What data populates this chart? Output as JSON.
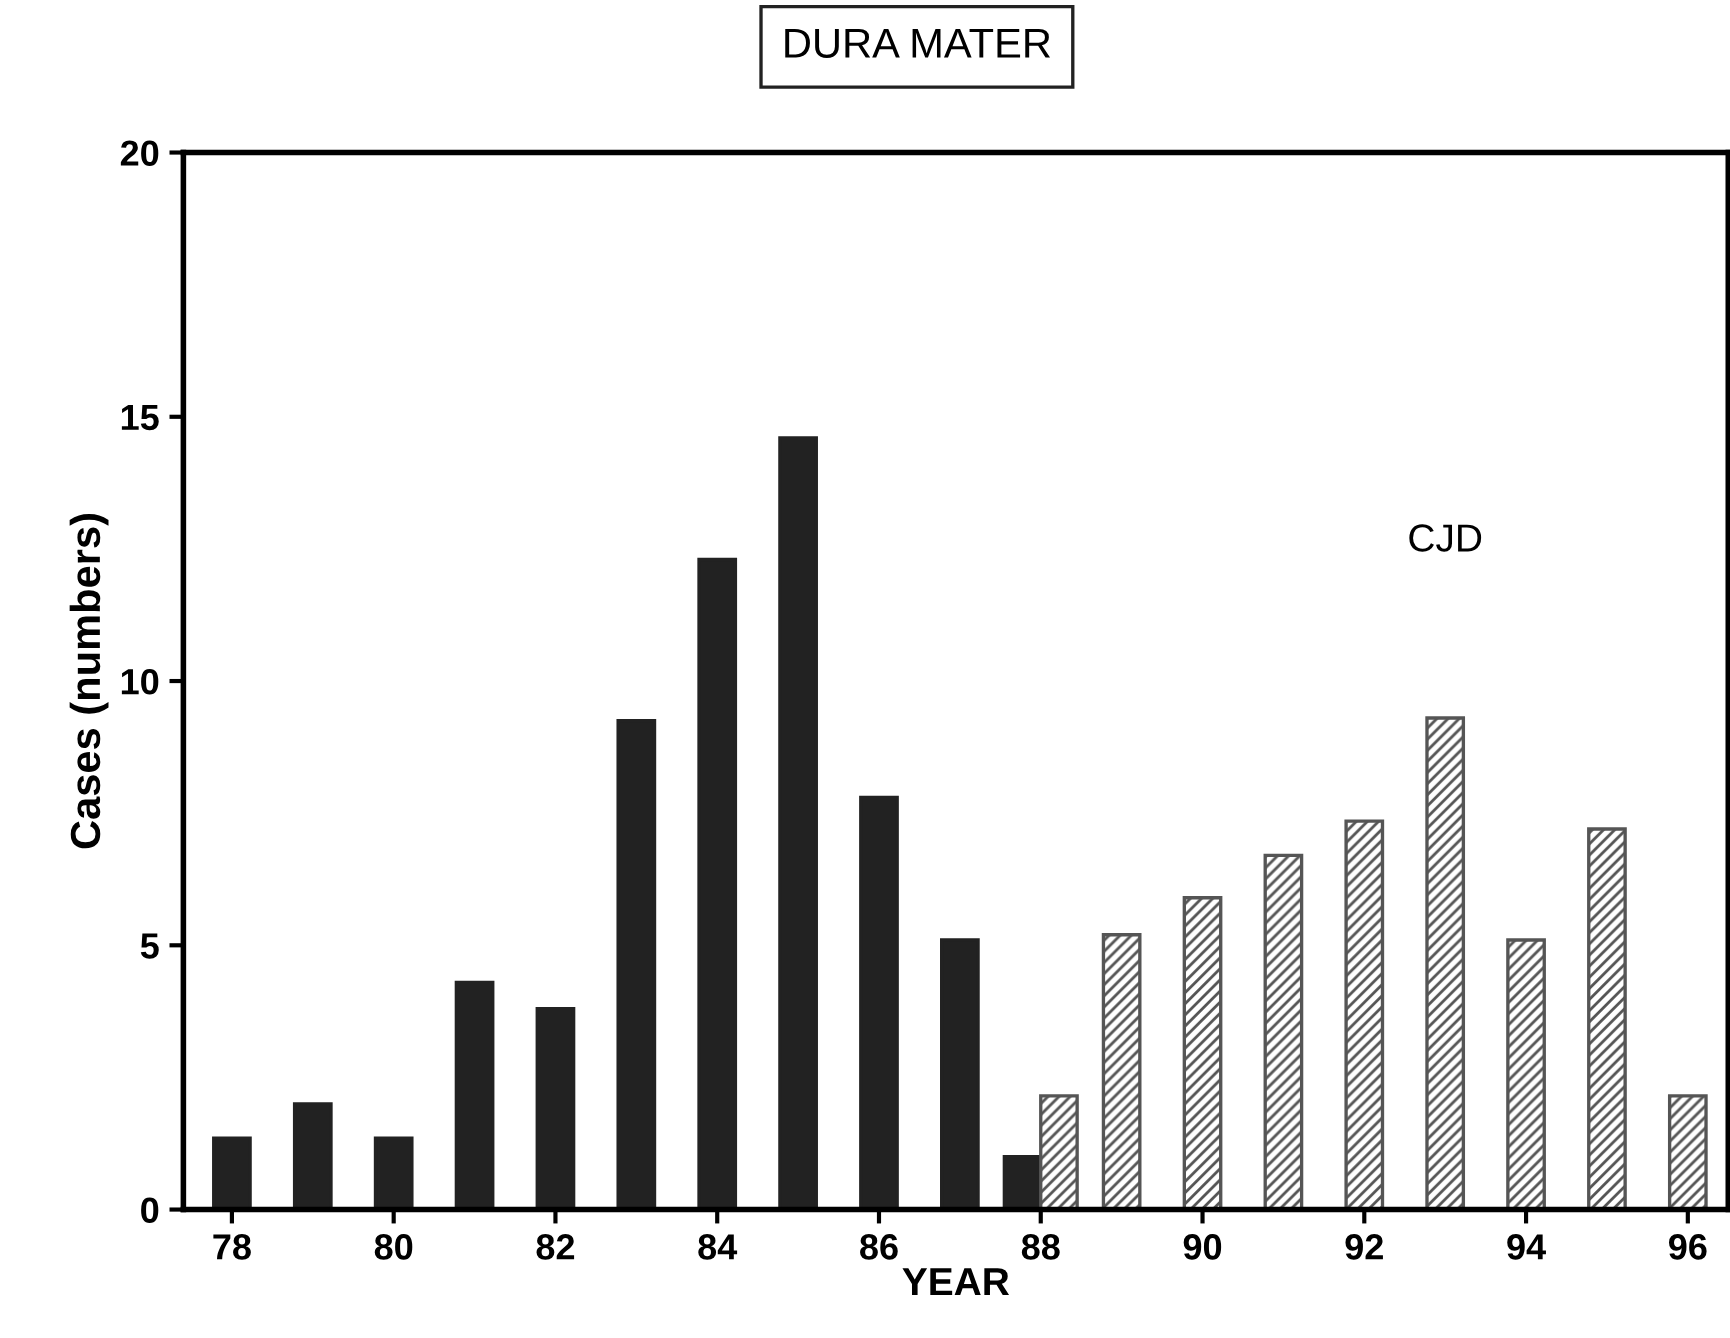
{
  "chart_data": {
    "type": "bar",
    "title": "DURA MATER",
    "xlabel": "YEAR",
    "ylabel": "Cases (numbers)",
    "series": [
      {
        "color": "#222222",
        "x": [
          78,
          79,
          80,
          81,
          82,
          83,
          84,
          85,
          86,
          87,
          88
        ],
        "values": [
          1.35,
          2.0,
          1.35,
          4.3,
          3.8,
          9.25,
          12.3,
          14.6,
          7.8,
          5.1,
          1.0
        ]
      },
      {
        "name": "CJD",
        "color": "#555555",
        "x": [
          88,
          89,
          90,
          91,
          92,
          93,
          94,
          95,
          96
        ],
        "values": [
          2.15,
          5.2,
          5.9,
          6.7,
          7.35,
          9.3,
          5.1,
          7.2,
          2.15
        ]
      }
    ],
    "xlim": [
      77.4,
      96.5
    ],
    "xticks": [
      78,
      80,
      82,
      84,
      86,
      88,
      90,
      92,
      94,
      96
    ],
    "ylim": [
      0,
      20
    ],
    "yticks": [
      0,
      5,
      10,
      15,
      20
    ],
    "grid": false,
    "legend": false
  }
}
